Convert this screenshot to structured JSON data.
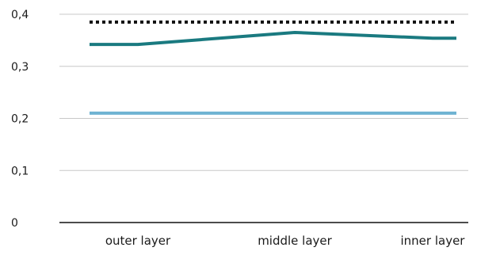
{
  "chart_data": {
    "type": "line",
    "title": "",
    "xlabel": "",
    "ylabel": "",
    "categories": [
      "outer layer",
      "middle layer",
      "inner layer"
    ],
    "ylim": [
      0,
      0.4
    ],
    "yticks": [
      {
        "value": 0,
        "label": "0"
      },
      {
        "value": 0.1,
        "label": "0,1"
      },
      {
        "value": 0.2,
        "label": "0,2"
      },
      {
        "value": 0.3,
        "label": "0,3"
      },
      {
        "value": 0.4,
        "label": "0,4"
      }
    ],
    "grid": true,
    "legend": "none",
    "series": [
      {
        "values": [
          0.385,
          0.385,
          0.385
        ],
        "color": "#111111",
        "style": "dotted"
      },
      {
        "values": [
          0.342,
          0.365,
          0.354
        ],
        "color": "#1a7a80",
        "style": "solid"
      },
      {
        "values": [
          0.21,
          0.21,
          0.21
        ],
        "color": "#6fb3d2",
        "style": "solid"
      }
    ]
  }
}
